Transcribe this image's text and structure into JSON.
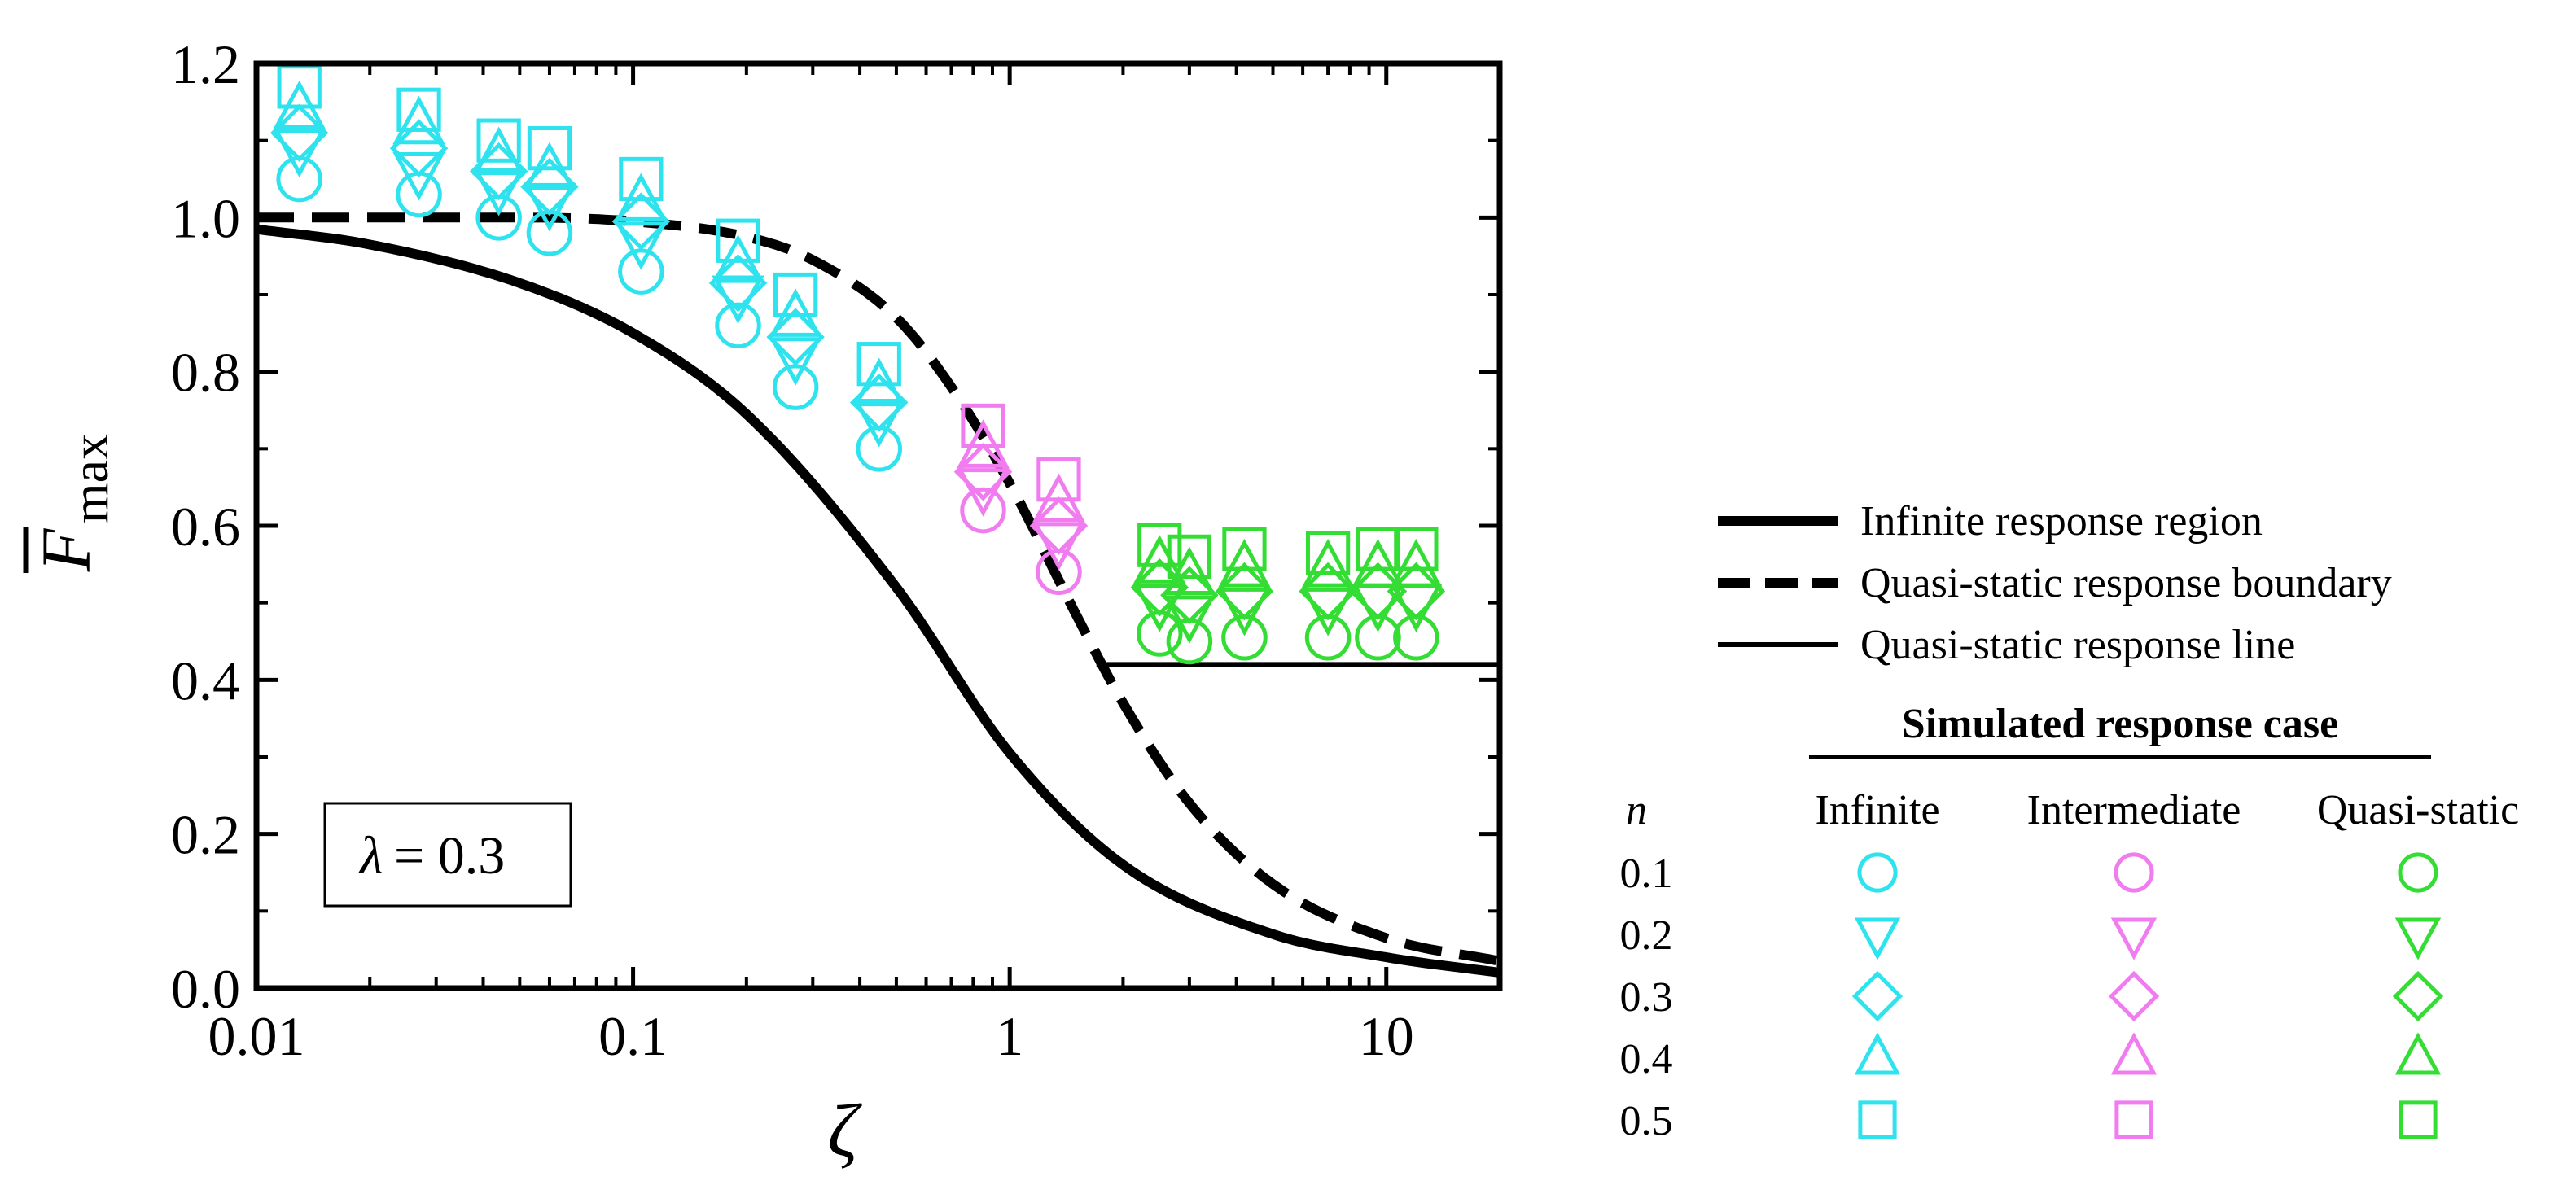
{
  "chart_data": {
    "type": "scatter",
    "xscale": "log",
    "xlim": [
      0.01,
      20
    ],
    "ylim": [
      0,
      1.2
    ],
    "xticks": [
      "0.01",
      "0.1",
      "1",
      "10"
    ],
    "yticks": [
      "0.0",
      "0.2",
      "0.4",
      "0.6",
      "0.8",
      "1.0",
      "1.2"
    ],
    "xlabel": "ζ",
    "ylabel": {
      "main": "F",
      "sub": "max",
      "overbar": true
    },
    "annotation": {
      "symbol": "λ",
      "text": "= 0.3"
    },
    "lines": [
      {
        "name": "Infinite response region",
        "style": "thick-solid",
        "x": [
          0.01,
          0.02,
          0.05,
          0.1,
          0.2,
          0.5,
          1,
          2,
          5,
          10,
          20
        ],
        "y": [
          0.985,
          0.965,
          0.915,
          0.85,
          0.745,
          0.52,
          0.305,
          0.16,
          0.07,
          0.04,
          0.02
        ]
      },
      {
        "name": "Quasi-static response boundary",
        "style": "dashed",
        "x": [
          0.01,
          0.05,
          0.1,
          0.2,
          0.3,
          0.5,
          0.7,
          1,
          1.5,
          2,
          3,
          5,
          10,
          20
        ],
        "y": [
          1.0,
          1.0,
          0.995,
          0.975,
          0.945,
          0.87,
          0.78,
          0.655,
          0.485,
          0.37,
          0.24,
          0.135,
          0.065,
          0.035
        ]
      },
      {
        "name": "Quasi-static response line",
        "style": "thin-solid",
        "x": [
          1.7,
          20
        ],
        "y": [
          0.42,
          0.42
        ]
      }
    ],
    "series": [
      {
        "group": "Infinite",
        "color": "#2ee3ee",
        "x": [
          0.013,
          0.027,
          0.044,
          0.06,
          0.105,
          0.19,
          0.27,
          0.45
        ],
        "points": {
          "0.1": [
            1.05,
            1.03,
            1.0,
            0.98,
            0.93,
            0.86,
            0.78,
            0.7
          ],
          "0.2": [
            1.09,
            1.06,
            1.04,
            1.02,
            0.97,
            0.9,
            0.82,
            0.74
          ],
          "0.3": [
            1.11,
            1.09,
            1.06,
            1.04,
            0.995,
            0.915,
            0.845,
            0.76
          ],
          "0.4": [
            1.14,
            1.12,
            1.08,
            1.06,
            1.02,
            0.94,
            0.87,
            0.78
          ],
          "0.5": [
            1.17,
            1.14,
            1.1,
            1.09,
            1.05,
            0.97,
            0.9,
            0.81
          ]
        }
      },
      {
        "group": "Intermediate",
        "color": "#f07cf0",
        "x": [
          0.85,
          1.35
        ],
        "points": {
          "0.1": [
            0.62,
            0.54
          ],
          "0.2": [
            0.65,
            0.58
          ],
          "0.3": [
            0.67,
            0.6
          ],
          "0.4": [
            0.7,
            0.63
          ],
          "0.5": [
            0.73,
            0.66
          ]
        }
      },
      {
        "group": "Quasi-static",
        "color": "#33dd33",
        "x": [
          2.5,
          3.0,
          4.2,
          7.0,
          9.5,
          12.0
        ],
        "points": {
          "0.1": [
            0.46,
            0.45,
            0.455,
            0.455,
            0.455,
            0.455
          ],
          "0.2": [
            0.5,
            0.485,
            0.495,
            0.495,
            0.5,
            0.5
          ],
          "0.3": [
            0.52,
            0.51,
            0.515,
            0.515,
            0.515,
            0.515
          ],
          "0.4": [
            0.55,
            0.535,
            0.545,
            0.545,
            0.545,
            0.545
          ],
          "0.5": [
            0.575,
            0.56,
            0.57,
            0.565,
            0.57,
            0.57
          ]
        }
      }
    ],
    "n_values": [
      "0.1",
      "0.2",
      "0.3",
      "0.4",
      "0.5"
    ],
    "n_markers": {
      "0.1": "circle",
      "0.2": "triangle-down",
      "0.3": "diamond",
      "0.4": "triangle-up",
      "0.5": "square"
    },
    "legend": {
      "lines": [
        {
          "label": "Infinite response region",
          "style": "thick-solid"
        },
        {
          "label": "Quasi-static response boundary",
          "style": "dashed"
        },
        {
          "label": "Quasi-static response line",
          "style": "thin-solid"
        }
      ],
      "table": {
        "title": "Simulated response case",
        "row_header": "n",
        "columns": [
          "Infinite",
          "Intermediate",
          "Quasi-static"
        ]
      }
    }
  }
}
